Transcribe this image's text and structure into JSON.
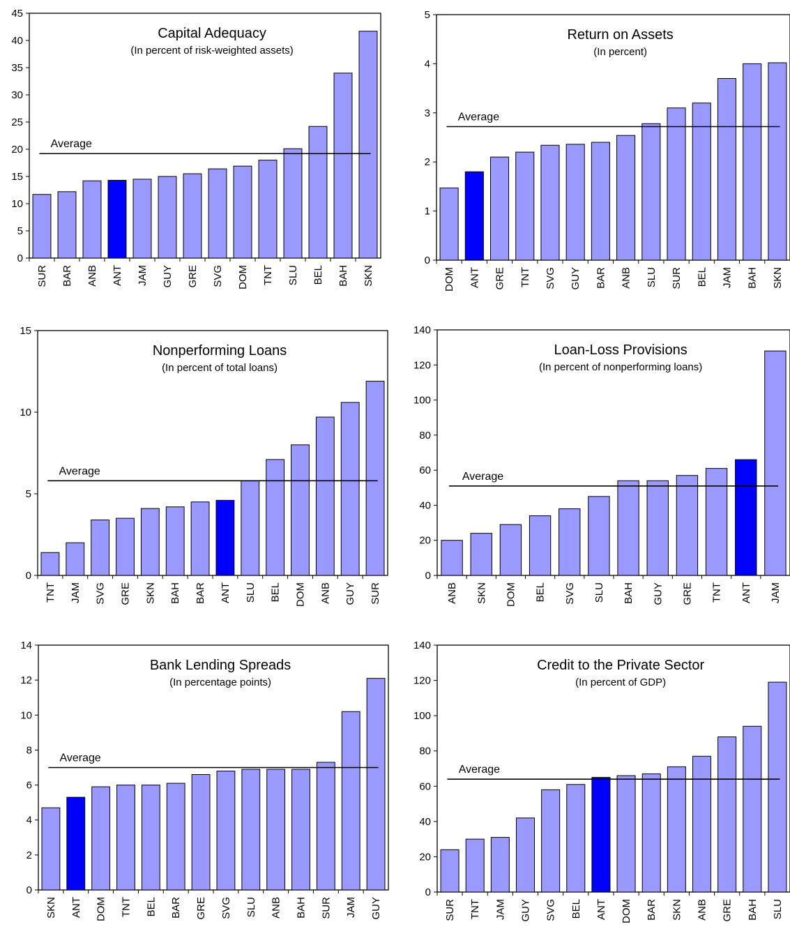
{
  "colors": {
    "bar": "#9999ff",
    "highlight": "#0000ff",
    "bar_stroke": "#000000",
    "line": "#000000"
  },
  "average_label": "Average",
  "highlight_category": "ANT",
  "chart_data": [
    {
      "type": "bar",
      "title": "Capital Adequacy",
      "subtitle": "(In percent of risk-weighted assets)",
      "categories": [
        "SUR",
        "BAR",
        "ANB",
        "ANT",
        "JAM",
        "GUY",
        "GRE",
        "SVG",
        "DOM",
        "TNT",
        "SLU",
        "BEL",
        "BAH",
        "SKN"
      ],
      "values": [
        11.7,
        12.2,
        14.2,
        14.3,
        14.5,
        15.0,
        15.5,
        16.4,
        16.9,
        18.0,
        20.1,
        24.2,
        34.0,
        41.7
      ],
      "average": 19.2,
      "ylim": [
        0,
        45
      ],
      "yticks": [
        0,
        5,
        10,
        15,
        20,
        25,
        30,
        35,
        40,
        45
      ]
    },
    {
      "type": "bar",
      "title": "Return on Assets",
      "subtitle": "(In percent)",
      "categories": [
        "DOM",
        "ANT",
        "GRE",
        "TNT",
        "SVG",
        "GUY",
        "BAR",
        "ANB",
        "SLU",
        "SUR",
        "BEL",
        "JAM",
        "BAH",
        "SKN"
      ],
      "values": [
        1.47,
        1.8,
        2.1,
        2.2,
        2.34,
        2.36,
        2.4,
        2.54,
        2.78,
        3.1,
        3.2,
        3.7,
        4.0,
        4.02
      ],
      "average": 2.72,
      "ylim": [
        0,
        5
      ],
      "yticks": [
        0,
        1,
        2,
        3,
        4,
        5
      ]
    },
    {
      "type": "bar",
      "title": "Nonperforming Loans",
      "subtitle": "(In percent of total loans)",
      "categories": [
        "TNT",
        "JAM",
        "SVG",
        "GRE",
        "SKN",
        "BAH",
        "BAR",
        "ANT",
        "SLU",
        "BEL",
        "DOM",
        "ANB",
        "GUY",
        "SUR"
      ],
      "values": [
        1.4,
        2.0,
        3.4,
        3.5,
        4.1,
        4.2,
        4.5,
        4.6,
        5.8,
        7.1,
        8.0,
        9.7,
        10.6,
        11.9
      ],
      "average": 5.8,
      "ylim": [
        0,
        15
      ],
      "yticks": [
        0,
        5,
        10,
        15
      ]
    },
    {
      "type": "bar",
      "title": "Loan-Loss Provisions",
      "subtitle": "(In percent of nonperforming loans)",
      "categories": [
        "ANB",
        "SKN",
        "DOM",
        "BEL",
        "SVG",
        "SLU",
        "BAH",
        "GUY",
        "GRE",
        "TNT",
        "ANT",
        "JAM"
      ],
      "values": [
        20,
        24,
        29,
        34,
        38,
        45,
        54,
        54,
        57,
        61,
        66,
        128
      ],
      "average": 51,
      "ylim": [
        0,
        140
      ],
      "yticks": [
        0,
        20,
        40,
        60,
        80,
        100,
        120,
        140
      ]
    },
    {
      "type": "bar",
      "title": "Bank Lending Spreads",
      "subtitle": "(In percentage points)",
      "categories": [
        "SKN",
        "ANT",
        "DOM",
        "TNT",
        "BEL",
        "BAR",
        "GRE",
        "SVG",
        "SLU",
        "ANB",
        "BAH",
        "SUR",
        "JAM",
        "GUY"
      ],
      "values": [
        4.7,
        5.3,
        5.9,
        6.0,
        6.0,
        6.1,
        6.6,
        6.8,
        6.9,
        6.9,
        6.9,
        7.3,
        10.2,
        12.1
      ],
      "average": 7.0,
      "ylim": [
        0,
        14
      ],
      "yticks": [
        0,
        2,
        4,
        6,
        8,
        10,
        12,
        14
      ]
    },
    {
      "type": "bar",
      "title": "Credit to the Private Sector",
      "subtitle": "(In percent of GDP)",
      "categories": [
        "SUR",
        "TNT",
        "JAM",
        "GUY",
        "SVG",
        "BEL",
        "ANT",
        "DOM",
        "BAR",
        "SKN",
        "ANB",
        "GRE",
        "BAH",
        "SLU"
      ],
      "values": [
        24,
        30,
        31,
        42,
        58,
        61,
        65,
        66,
        67,
        71,
        77,
        88,
        94,
        119
      ],
      "average": 64,
      "ylim": [
        0,
        140
      ],
      "yticks": [
        0,
        20,
        40,
        60,
        80,
        100,
        120,
        140
      ]
    }
  ]
}
